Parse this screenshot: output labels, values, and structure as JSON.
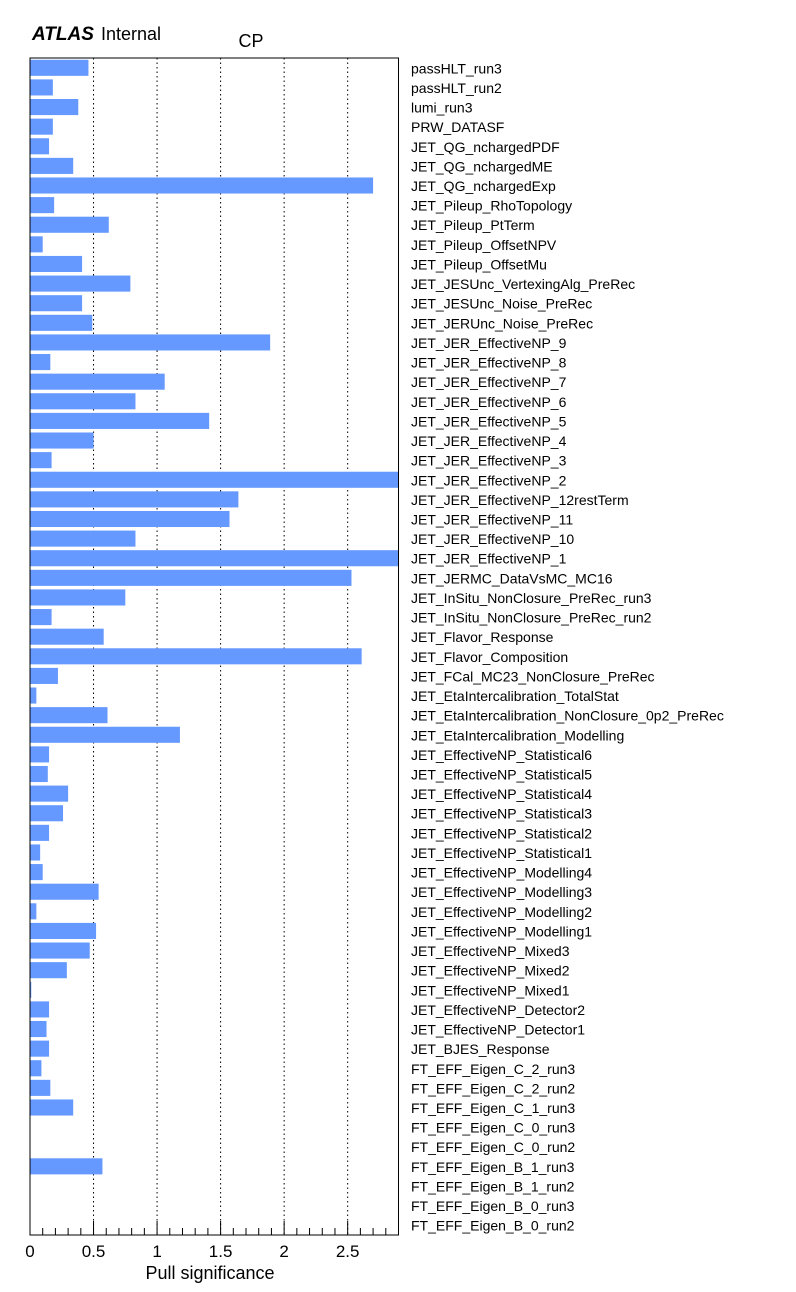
{
  "header": {
    "experiment": "ATLAS",
    "status": "Internal"
  },
  "chart_data": {
    "type": "bar",
    "orientation": "horizontal",
    "title": "CP",
    "xlabel": "Pull significance",
    "ylabel": "",
    "xlim": [
      0,
      2.9
    ],
    "xticks": [
      "0",
      "0.5",
      "1",
      "1.5",
      "2",
      "2.5"
    ],
    "grid": "vertical dotted at major ticks",
    "bar_color": "#6699ff",
    "categories": [
      "passHLT_run3",
      "passHLT_run2",
      "lumi_run3",
      "PRW_DATASF",
      "JET_QG_nchargedPDF",
      "JET_QG_nchargedME",
      "JET_QG_nchargedExp",
      "JET_Pileup_RhoTopology",
      "JET_Pileup_PtTerm",
      "JET_Pileup_OffsetNPV",
      "JET_Pileup_OffsetMu",
      "JET_JESUnc_VertexingAlg_PreRec",
      "JET_JESUnc_Noise_PreRec",
      "JET_JERUnc_Noise_PreRec",
      "JET_JER_EffectiveNP_9",
      "JET_JER_EffectiveNP_8",
      "JET_JER_EffectiveNP_7",
      "JET_JER_EffectiveNP_6",
      "JET_JER_EffectiveNP_5",
      "JET_JER_EffectiveNP_4",
      "JET_JER_EffectiveNP_3",
      "JET_JER_EffectiveNP_2",
      "JET_JER_EffectiveNP_12restTerm",
      "JET_JER_EffectiveNP_11",
      "JET_JER_EffectiveNP_10",
      "JET_JER_EffectiveNP_1",
      "JET_JERMC_DataVsMC_MC16",
      "JET_InSitu_NonClosure_PreRec_run3",
      "JET_InSitu_NonClosure_PreRec_run2",
      "JET_Flavor_Response",
      "JET_Flavor_Composition",
      "JET_FCal_MC23_NonClosure_PreRec",
      "JET_EtaIntercalibration_TotalStat",
      "JET_EtaIntercalibration_NonClosure_0p2_PreRec",
      "JET_EtaIntercalibration_Modelling",
      "JET_EffectiveNP_Statistical6",
      "JET_EffectiveNP_Statistical5",
      "JET_EffectiveNP_Statistical4",
      "JET_EffectiveNP_Statistical3",
      "JET_EffectiveNP_Statistical2",
      "JET_EffectiveNP_Statistical1",
      "JET_EffectiveNP_Modelling4",
      "JET_EffectiveNP_Modelling3",
      "JET_EffectiveNP_Modelling2",
      "JET_EffectiveNP_Modelling1",
      "JET_EffectiveNP_Mixed3",
      "JET_EffectiveNP_Mixed2",
      "JET_EffectiveNP_Mixed1",
      "JET_EffectiveNP_Detector2",
      "JET_EffectiveNP_Detector1",
      "JET_BJES_Response",
      "FT_EFF_Eigen_C_2_run3",
      "FT_EFF_Eigen_C_2_run2",
      "FT_EFF_Eigen_C_1_run3",
      "FT_EFF_Eigen_C_0_run3",
      "FT_EFF_Eigen_C_0_run2",
      "FT_EFF_Eigen_B_1_run3",
      "FT_EFF_Eigen_B_1_run2",
      "FT_EFF_Eigen_B_0_run3",
      "FT_EFF_Eigen_B_0_run2"
    ],
    "values": [
      0.46,
      0.18,
      0.38,
      0.18,
      0.15,
      0.34,
      2.7,
      0.19,
      0.62,
      0.1,
      0.41,
      0.79,
      0.41,
      0.49,
      1.89,
      0.16,
      1.06,
      0.83,
      1.41,
      0.5,
      0.17,
      2.9,
      1.64,
      1.57,
      0.83,
      2.9,
      2.53,
      0.75,
      0.17,
      0.58,
      2.61,
      0.22,
      0.05,
      0.61,
      1.18,
      0.15,
      0.14,
      0.3,
      0.26,
      0.15,
      0.08,
      0.1,
      0.54,
      0.05,
      0.52,
      0.47,
      0.29,
      0.01,
      0.15,
      0.13,
      0.15,
      0.09,
      0.16,
      0.34,
      0.0,
      0.0,
      0.57,
      0.0,
      0.0,
      0.0
    ]
  }
}
